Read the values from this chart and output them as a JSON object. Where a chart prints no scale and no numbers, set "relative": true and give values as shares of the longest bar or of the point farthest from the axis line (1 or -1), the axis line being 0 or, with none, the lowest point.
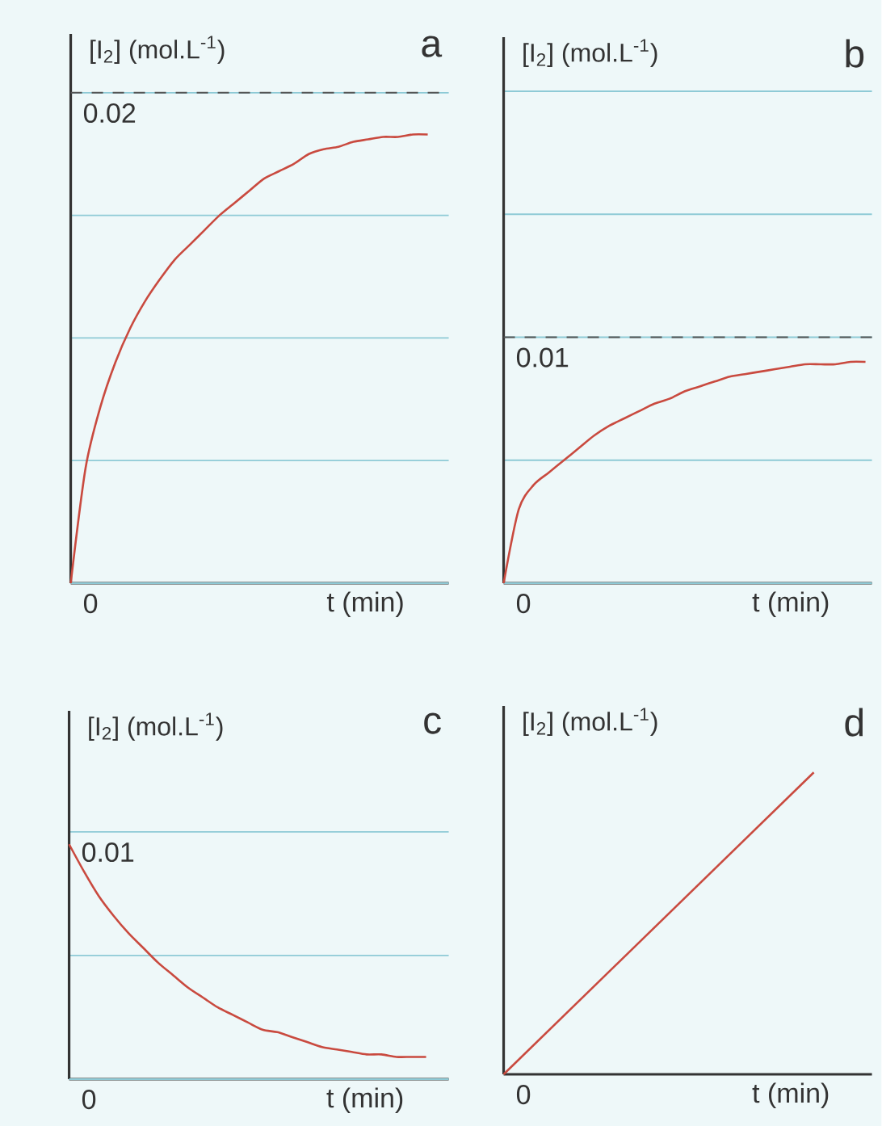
{
  "chart_data": [
    {
      "type": "line",
      "title": "a",
      "xlabel": "t (min)",
      "ylabel": "[I$_{2}$] (mol.L$^{-1}$)",
      "ylim": [
        0,
        0.0224
      ],
      "yticks": [
        0,
        {
          "value": 0.005,
          "label": null
        },
        {
          "value": 0.01,
          "label": null
        },
        {
          "value": 0.015,
          "label": null
        },
        0.02
      ],
      "grid": "y",
      "ref_lines": [
        {
          "axis": "y",
          "value": 0.02,
          "color": "#555555",
          "line_style": "dashed"
        }
      ],
      "categories": [
        null,
        null,
        null,
        null,
        null,
        null,
        null,
        null,
        null,
        null,
        null,
        null,
        null,
        null,
        null,
        null,
        null,
        null,
        null,
        null,
        null,
        null,
        null,
        null,
        null
      ],
      "series": [
        {
          "color": "#c94a3f",
          "values": [
            0,
            0.0047,
            0.0072,
            0.009,
            0.0104,
            0.0115,
            0.0124,
            0.0132,
            0.0138,
            0.0144,
            0.015,
            0.0155,
            0.016,
            0.0165,
            0.0168,
            0.0171,
            0.0175,
            0.0177,
            0.0178,
            0.018,
            0.0181,
            0.0182,
            0.0182,
            0.0183,
            0.0183
          ]
        }
      ]
    },
    {
      "type": "line",
      "title": "b",
      "xlabel": "t (min)",
      "ylabel": "[I$_{2}$] (mol.L$^{-1}$)",
      "ylim": [
        0,
        0.0222
      ],
      "yticks": [
        0,
        {
          "value": 0.005,
          "label": null
        },
        0.01,
        {
          "value": 0.015,
          "label": null
        },
        {
          "value": 0.02,
          "label": null
        }
      ],
      "grid": "y",
      "ref_lines": [
        {
          "axis": "y",
          "value": 0.01,
          "color": "#555555",
          "line_style": "dashed"
        }
      ],
      "categories": [
        null,
        null,
        null,
        null,
        null,
        null,
        null,
        null,
        null,
        null,
        null,
        null,
        null,
        null,
        null,
        null,
        null,
        null,
        null,
        null,
        null,
        null,
        null,
        null,
        null
      ],
      "series": [
        {
          "color": "#c94a3f",
          "values": [
            0,
            0.003,
            0.004,
            0.0045,
            0.005,
            0.0055,
            0.006,
            0.0064,
            0.0067,
            0.007,
            0.0073,
            0.0075,
            0.0078,
            0.008,
            0.0082,
            0.0084,
            0.0085,
            0.0086,
            0.0087,
            0.0088,
            0.0089,
            0.0089,
            0.0089,
            0.009,
            0.009
          ]
        }
      ]
    },
    {
      "type": "line",
      "title": "c",
      "xlabel": "t (min)",
      "ylabel": "[I$_{2}$] (mol.L$^{-1}$)",
      "ylim": [
        0,
        0.0149
      ],
      "yticks": [
        0,
        {
          "value": 0.005,
          "label": null
        },
        0.01
      ],
      "grid": "y",
      "categories": [
        null,
        null,
        null,
        null,
        null,
        null,
        null,
        null,
        null,
        null,
        null,
        null,
        null,
        null,
        null,
        null,
        null,
        null,
        null,
        null,
        null,
        null,
        null,
        null,
        null
      ],
      "series": [
        {
          "color": "#c94a3f",
          "values": [
            0.0095,
            0.0084,
            0.0074,
            0.0066,
            0.0059,
            0.0053,
            0.0047,
            0.0042,
            0.0037,
            0.0033,
            0.0029,
            0.0026,
            0.0023,
            0.002,
            0.0019,
            0.0017,
            0.0015,
            0.0013,
            0.0012,
            0.0011,
            0.001,
            0.001,
            0.0009,
            0.0009,
            0.0009
          ]
        }
      ]
    },
    {
      "type": "line",
      "title": "d",
      "xlabel": "t (min)",
      "ylabel": "[I$_{2}$] (mol.L$^{-1}$)",
      "relative": true,
      "annotations": [
        "0"
      ],
      "categories": [
        null,
        null
      ],
      "series": [
        {
          "color": "#c94a3f",
          "values": [
            0,
            1
          ]
        }
      ]
    }
  ]
}
